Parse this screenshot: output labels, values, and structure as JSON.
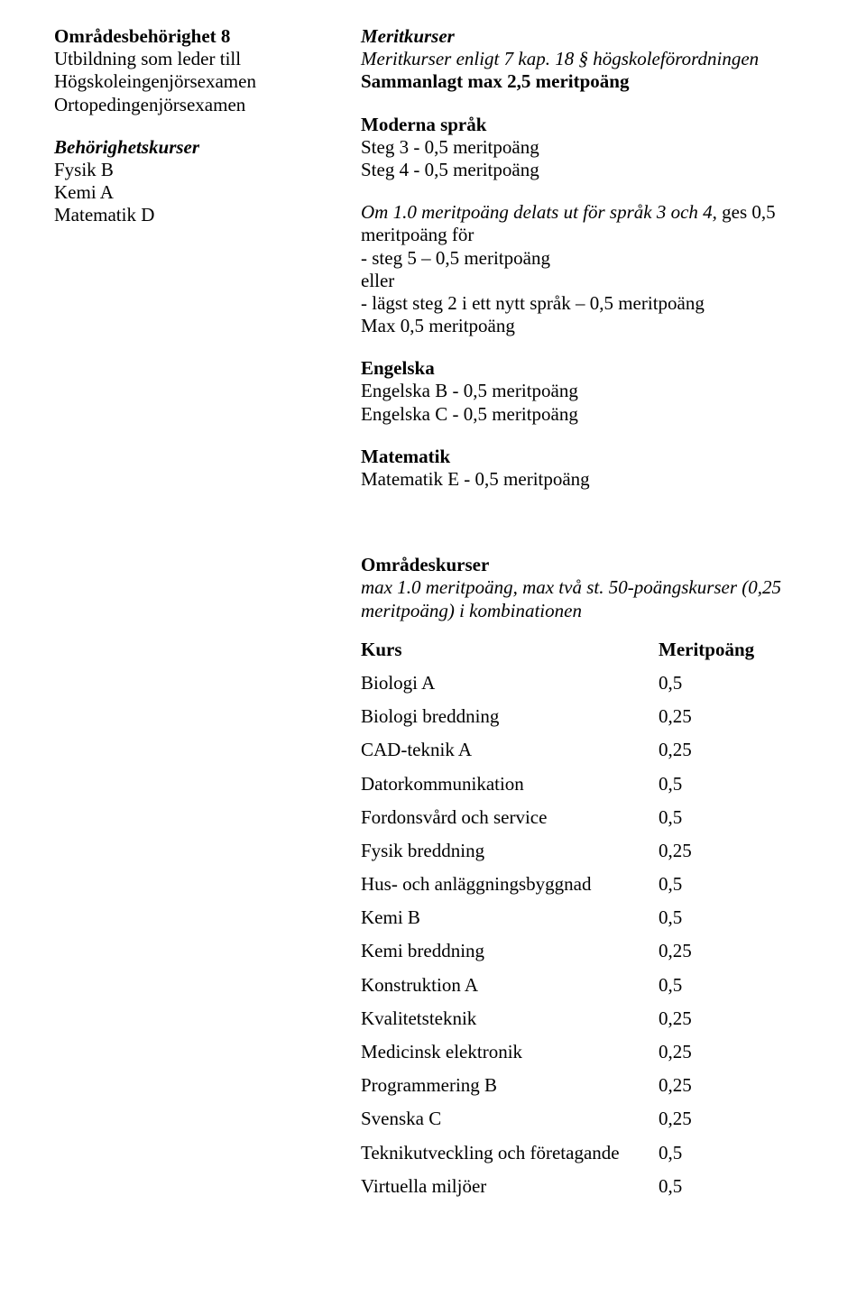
{
  "left": {
    "title": "Områdesbehörighet 8",
    "lines": [
      "Utbildning som leder till",
      "Högskoleingenjörsexamen",
      "Ortopedingenjörsexamen"
    ],
    "behTitle": "Behörighetskurser",
    "behItems": [
      "Fysik B",
      "Kemi A",
      "Matematik D"
    ]
  },
  "right": {
    "meritTitle": "Meritkurser",
    "meritLine1a": "Meritkurser enligt 7 kap. 18 § högskoleförordningen",
    "meritLine2": "Sammanlagt max 2,5 meritpoäng",
    "sprakTitle": "Moderna språk",
    "sprakItems": [
      "Steg 3 - 0,5 meritpoäng",
      "Steg 4 - 0,5 meritpoäng"
    ],
    "omPrefix": "Om 1.0 meritpoäng delats ut för språk 3 och 4,",
    "omSuffix": " ges 0,5 meritpoäng för",
    "omList": [
      "- steg 5 – 0,5 meritpoäng",
      "eller",
      "- lägst steg 2 i ett nytt språk – 0,5 meritpoäng",
      "Max 0,5 meritpoäng"
    ],
    "engTitle": "Engelska",
    "engItems": [
      "Engelska B - 0,5 meritpoäng",
      "Engelska C - 0,5 meritpoäng"
    ],
    "matTitle": "Matematik",
    "matItems": [
      "Matematik E - 0,5 meritpoäng"
    ],
    "omrTitle": "Områdeskurser",
    "omrLine1": "max 1.0 meritpoäng, max två st. 50-poängskurser (0,25 meritpoäng) i kombinationen",
    "kursHeader": {
      "c1": "Kurs",
      "c2": "Meritpoäng"
    },
    "kursRows": [
      {
        "c1": "Biologi A",
        "c2": "0,5"
      },
      {
        "c1": "Biologi breddning",
        "c2": "0,25"
      },
      {
        "c1": "CAD-teknik A",
        "c2": "0,25"
      },
      {
        "c1": "Datorkommunikation",
        "c2": "0,5"
      },
      {
        "c1": "Fordonsvård och service",
        "c2": "0,5"
      },
      {
        "c1": "Fysik breddning",
        "c2": "0,25"
      },
      {
        "c1": "Hus- och anläggningsbyggnad",
        "c2": "0,5"
      },
      {
        "c1": "Kemi B",
        "c2": "0,5"
      },
      {
        "c1": "Kemi breddning",
        "c2": "0,25"
      },
      {
        "c1": "Konstruktion A",
        "c2": "0,5"
      },
      {
        "c1": "Kvalitetsteknik",
        "c2": "0,25"
      },
      {
        "c1": "Medicinsk elektronik",
        "c2": "0,25"
      },
      {
        "c1": "Programmering B",
        "c2": "0,25"
      },
      {
        "c1": "Svenska C",
        "c2": "0,25"
      },
      {
        "c1": "Teknikutveckling och företagande",
        "c2": "0,5"
      },
      {
        "c1": "Virtuella miljöer",
        "c2": "0,5"
      }
    ]
  }
}
